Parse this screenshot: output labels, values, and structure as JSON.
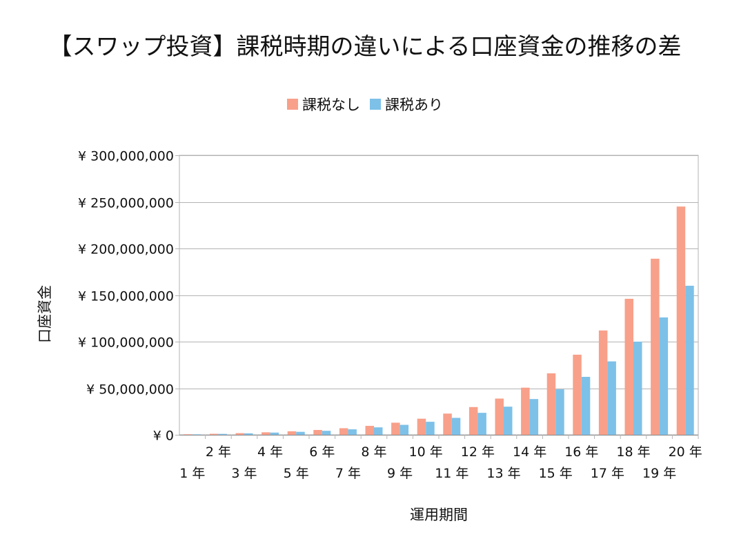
{
  "chart_data": {
    "type": "bar",
    "title": "【スワップ投資】課税時期の違いによる口座資金の推移の差",
    "xlabel": "運用期間",
    "ylabel": "口座資金",
    "ylim": [
      0,
      300000000
    ],
    "yticks": [
      0,
      50000000,
      100000000,
      150000000,
      200000000,
      250000000,
      300000000
    ],
    "ytick_labels": [
      "¥ 0",
      "¥ 50,000,000",
      "¥ 100,000,000",
      "¥ 150,000,000",
      "¥ 200,000,000",
      "¥ 250,000,000",
      "¥ 300,000,000"
    ],
    "grid": true,
    "legend_position": "top-center",
    "categories": [
      "1 年",
      "2 年",
      "3 年",
      "4 年",
      "5 年",
      "6 年",
      "7 年",
      "8 年",
      "9 年",
      "10 年",
      "11 年",
      "12 年",
      "13 年",
      "14 年",
      "15 年",
      "16 年",
      "17 年",
      "18 年",
      "19 年",
      "20 年"
    ],
    "series": [
      {
        "name": "課税なし",
        "color": "#F8A08A",
        "values": [
          600000,
          1100000,
          1800000,
          2700000,
          3800000,
          5200000,
          7100000,
          9600000,
          13000000,
          17300000,
          22800000,
          29800000,
          38900000,
          50600000,
          66000000,
          86000000,
          112000000,
          146000000,
          189000000,
          245000000
        ]
      },
      {
        "name": "課税あり",
        "color": "#7DC1E8",
        "values": [
          500000,
          1000000,
          1600000,
          2400000,
          3200000,
          4300000,
          5900000,
          8000000,
          10700000,
          14000000,
          18200000,
          23600000,
          30200000,
          38400000,
          48800000,
          62200000,
          78800000,
          100000000,
          126000000,
          160000000
        ]
      }
    ]
  }
}
